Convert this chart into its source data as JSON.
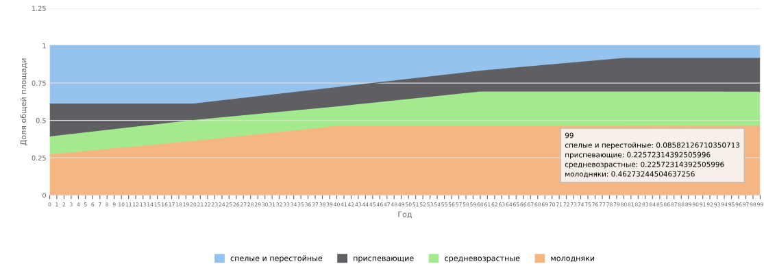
{
  "chart_data": {
    "type": "area",
    "stacked": true,
    "xlabel": "Год",
    "ylabel": "Доля общей площади",
    "x": [
      0,
      20,
      40,
      60,
      80,
      99
    ],
    "series": [
      {
        "name": "молодняки",
        "color": "#f6b681",
        "values": [
          0.27,
          0.36,
          0.46,
          0.46,
          0.46,
          0.463
        ]
      },
      {
        "name": "средневозрастные",
        "color": "#a3ea8f",
        "values": [
          0.12,
          0.14,
          0.13,
          0.23,
          0.23,
          0.226
        ]
      },
      {
        "name": "приспевающие",
        "color": "#5f5f63",
        "values": [
          0.22,
          0.11,
          0.13,
          0.14,
          0.225,
          0.226
        ]
      },
      {
        "name": "спелые и перестойные",
        "color": "#95c3ee",
        "values": [
          0.39,
          0.39,
          0.28,
          0.17,
          0.085,
          0.086
        ]
      }
    ],
    "xlim": [
      0,
      99
    ],
    "xticks": [
      0,
      1,
      2,
      3,
      4,
      5,
      6,
      7,
      8,
      9,
      10,
      11,
      12,
      13,
      14,
      15,
      16,
      17,
      18,
      19,
      20,
      21,
      22,
      23,
      24,
      25,
      26,
      27,
      28,
      29,
      30,
      31,
      32,
      33,
      34,
      35,
      36,
      37,
      38,
      39,
      40,
      41,
      42,
      43,
      44,
      45,
      46,
      47,
      48,
      49,
      50,
      51,
      52,
      53,
      54,
      55,
      56,
      57,
      58,
      59,
      60,
      61,
      62,
      63,
      64,
      65,
      66,
      67,
      68,
      69,
      70,
      71,
      72,
      73,
      74,
      75,
      76,
      77,
      78,
      79,
      80,
      81,
      82,
      83,
      84,
      85,
      86,
      87,
      88,
      89,
      90,
      91,
      92,
      93,
      94,
      95,
      96,
      97,
      98,
      99
    ],
    "ylim": [
      0,
      1.25
    ],
    "yticks": [
      0,
      0.25,
      0.5,
      0.75,
      1,
      1.25
    ],
    "grid": "y",
    "legend": "bottom",
    "annotations": [
      "99",
      "спелые и перестойные: 0.08582126710350713",
      "приспевающие: 0.22572314392505996",
      "средневозрастные: 0.22572314392505996",
      "молодняки: 0.46273244504637256"
    ]
  }
}
